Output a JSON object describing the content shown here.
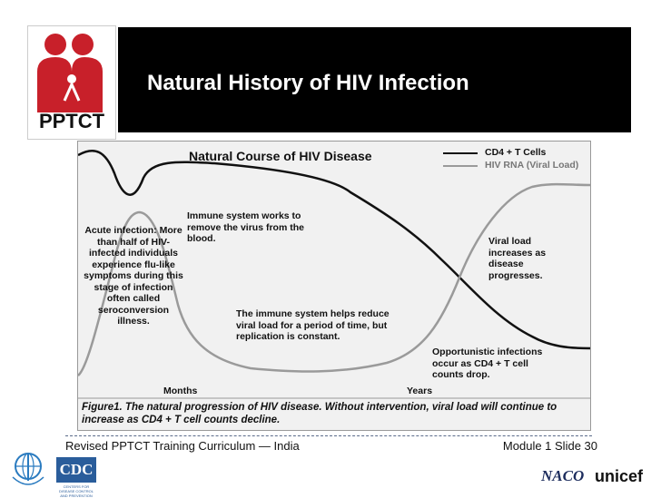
{
  "logo": {
    "text": "PPTCT"
  },
  "slide": {
    "title": "Natural History of HIV Infection"
  },
  "figure": {
    "chart_title": "Natural Course of HIV Disease",
    "legend": [
      {
        "label": "CD4 + T Cells",
        "color": "#111111"
      },
      {
        "label": "HIV RNA (Viral Load)",
        "color": "#9a9a9a"
      }
    ],
    "annotations": {
      "acute": "Acute infection: More than half of HIV-infected individuals experience flu-like symptoms during this stage of infection often called seroconversion illness.",
      "immune_removes": "Immune system works to remove the virus from the blood.",
      "immune_reduces": "The immune system helps reduce viral load for a period of time, but replication is constant.",
      "viral_increases": "Viral load increases as disease progresses.",
      "opportunistic": "Opportunistic infections occur as CD4 + T cell counts drop."
    },
    "axis": {
      "months": "Months",
      "years": "Years"
    },
    "caption": "Figure1. The natural progression of HIV disease. Without intervention, viral load will continue to increase as CD4 + T cell counts decline."
  },
  "footer": {
    "left": "Revised PPTCT Training Curriculum — India",
    "right": "Module 1  Slide 30"
  },
  "partners": {
    "cdc": "CDC",
    "cdc_sub": "CENTERS FOR DISEASE CONTROL AND PREVENTION",
    "naco": "NACO",
    "unicef": "unicef"
  }
}
